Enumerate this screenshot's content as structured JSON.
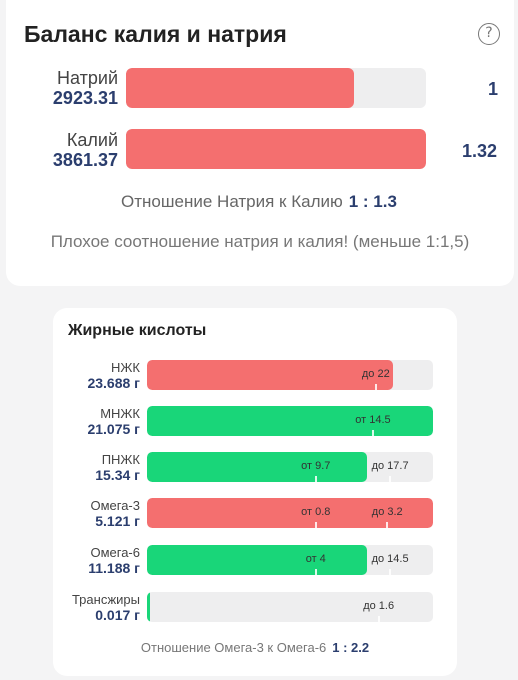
{
  "balance": {
    "title": "Баланс калия и натрия",
    "help_icon": "question-circle-icon",
    "sodium": {
      "label": "Натрий",
      "value": "2923.31",
      "ratio": "1",
      "fill_fraction": 0.76
    },
    "potassium": {
      "label": "Калий",
      "value": "3861.37",
      "ratio": "1.32",
      "fill_fraction": 1.0
    },
    "ratio_label": "Отношение Натрия к Калию",
    "ratio_value": "1 : 1.3",
    "warning": "Плохое соотношение натрия и калия! (меньше 1:1,5)",
    "colors": {
      "bad": "#f46f6f",
      "good": "#19d679",
      "track": "#eeeeef"
    }
  },
  "fatty_acids": {
    "title": "Жирные кислоты",
    "rows": [
      {
        "label": "НЖК",
        "value": "23.688 г",
        "fill_fraction": 0.86,
        "status": "bad",
        "ticks": [
          {
            "text": "до 22",
            "fraction": 0.8
          }
        ]
      },
      {
        "label": "МНЖК",
        "value": "21.075 г",
        "fill_fraction": 1.0,
        "status": "good",
        "ticks": [
          {
            "text": "от 14.5",
            "fraction": 0.79
          }
        ]
      },
      {
        "label": "ПНЖК",
        "value": "15.34 г",
        "fill_fraction": 0.77,
        "status": "good",
        "ticks": [
          {
            "text": "от 9.7",
            "fraction": 0.59
          },
          {
            "text": "до 17.7",
            "fraction": 0.85
          }
        ]
      },
      {
        "label": "Омега-3",
        "value": "5.121 г",
        "fill_fraction": 1.0,
        "status": "bad",
        "ticks": [
          {
            "text": "от 0.8",
            "fraction": 0.59
          },
          {
            "text": "до 3.2",
            "fraction": 0.84
          }
        ]
      },
      {
        "label": "Омега-6",
        "value": "11.188 г",
        "fill_fraction": 0.77,
        "status": "good",
        "ticks": [
          {
            "text": "от 4",
            "fraction": 0.59
          },
          {
            "text": "до 14.5",
            "fraction": 0.85
          }
        ]
      },
      {
        "label": "Трансжиры",
        "value": "0.017 г",
        "fill_fraction": 0.01,
        "status": "good",
        "ticks": [
          {
            "text": "до 1.6",
            "fraction": 0.81
          }
        ]
      }
    ],
    "ratio_label": "Отношение Омега-3 к Омега-6",
    "ratio_value": "1 : 2.2"
  }
}
